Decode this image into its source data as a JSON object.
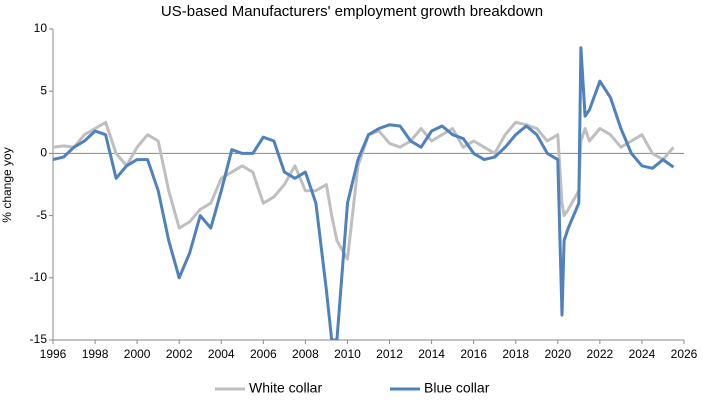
{
  "chart_data": {
    "type": "line",
    "title": "US-based Manufacturers' employment growth breakdown",
    "y_label": "% change yoy",
    "x": [
      1996,
      1996.5,
      1997,
      1997.5,
      1998,
      1998.5,
      1999,
      1999.5,
      2000,
      2000.5,
      2001,
      2001.5,
      2002,
      2002.5,
      2003,
      2003.5,
      2004,
      2004.5,
      2005,
      2005.5,
      2006,
      2006.5,
      2007,
      2007.5,
      2008,
      2008.5,
      2009,
      2009.25,
      2009.5,
      2010,
      2010.5,
      2011,
      2011.5,
      2012,
      2012.5,
      2013,
      2013.5,
      2014,
      2014.5,
      2015,
      2015.5,
      2016,
      2016.5,
      2017,
      2017.5,
      2018,
      2018.5,
      2019,
      2019.5,
      2020,
      2020.2,
      2020.3,
      2020.5,
      2021,
      2021.1,
      2021.3,
      2021.5,
      2022,
      2022.5,
      2023,
      2023.5,
      2024,
      2024.5,
      2025,
      2025.5
    ],
    "series": [
      {
        "name": "White collar",
        "color": "#bfbfbf",
        "values": [
          0.5,
          0.6,
          0.5,
          1.5,
          2.0,
          2.5,
          0,
          -1,
          0.5,
          1.5,
          1,
          -3,
          -6,
          -5.5,
          -4.5,
          -4,
          -2,
          -1.5,
          -1,
          -1.5,
          -4,
          -3.5,
          -2.5,
          -1,
          -3,
          -3,
          -2.5,
          -5,
          -7,
          -8.5,
          -1,
          1.5,
          1.8,
          0.8,
          0.5,
          1,
          2,
          1,
          1.5,
          2,
          0.5,
          1,
          0.5,
          0,
          1.5,
          2.5,
          2.3,
          2,
          1,
          1.5,
          -4,
          -5,
          -4.5,
          -3,
          1,
          2,
          1,
          2,
          1.5,
          0.5,
          1,
          1.5,
          0,
          -0.5,
          0.5
        ]
      },
      {
        "name": "Blue collar",
        "color": "#4f81bd",
        "values": [
          -0.5,
          -0.3,
          0.5,
          1,
          1.8,
          1.5,
          -2,
          -1,
          -0.5,
          -0.5,
          -3,
          -7,
          -10,
          -8,
          -5,
          -6,
          -3,
          0.3,
          0,
          0,
          1.3,
          1,
          -1.5,
          -2,
          -1.5,
          -4,
          -11,
          -15,
          -15,
          -4,
          -0.5,
          1.5,
          2,
          2.3,
          2.2,
          1,
          0.5,
          1.8,
          2.2,
          1.5,
          1.2,
          0,
          -0.5,
          -0.3,
          0.5,
          1.5,
          2.2,
          1.5,
          0,
          -0.5,
          -13,
          -7,
          -6,
          -4,
          8.5,
          3,
          3.5,
          5.8,
          4.5,
          2,
          0,
          -1,
          -1.2,
          -0.5,
          -1.1
        ]
      }
    ],
    "xlim": [
      1996,
      2026
    ],
    "ylim": [
      -15,
      10
    ],
    "xticks": [
      1996,
      1998,
      2000,
      2002,
      2004,
      2006,
      2008,
      2010,
      2012,
      2014,
      2016,
      2018,
      2020,
      2022,
      2024,
      2026
    ],
    "yticks": [
      -15,
      -10,
      -5,
      0,
      5,
      10
    ],
    "grid": false,
    "legend": "bottom"
  }
}
